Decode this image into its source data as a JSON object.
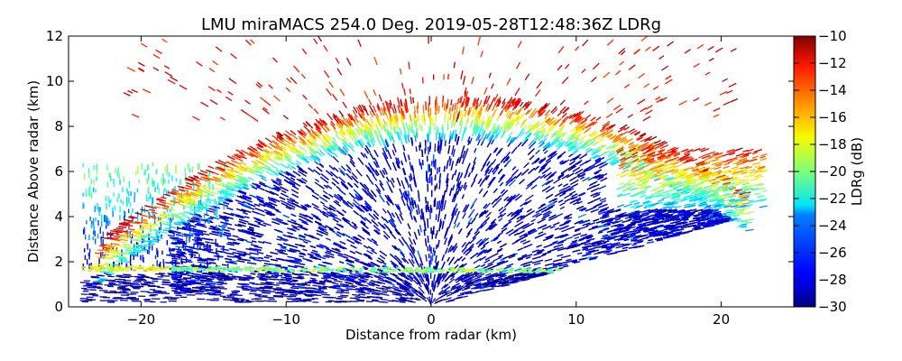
{
  "chart_data": {
    "type": "heatmap",
    "title": "LMU miraMACS 254.0 Deg. 2019-05-28T12:48:36Z  LDRg",
    "xlabel": "Distance from radar (km)",
    "ylabel": "Distance Above radar  (km)",
    "xlim": [
      -25,
      25
    ],
    "ylim": [
      0,
      12
    ],
    "xticks": [
      -20,
      -10,
      0,
      10,
      20
    ],
    "xtick_labels": [
      "−20",
      "−10",
      "0",
      "10",
      "20"
    ],
    "yticks": [
      0,
      2,
      4,
      6,
      8,
      10,
      12
    ],
    "ytick_labels": [
      "0",
      "2",
      "4",
      "6",
      "8",
      "10",
      "12"
    ],
    "grid": false,
    "colorbar": {
      "label": "LDRg (dB)",
      "colormap": "jet",
      "range": [
        -30,
        -10
      ],
      "ticks": [
        -10,
        -12,
        -14,
        -16,
        -18,
        -20,
        -22,
        -24,
        -26,
        -28,
        -30
      ],
      "tick_labels": [
        "−10",
        "−12",
        "−14",
        "−16",
        "−18",
        "−20",
        "−22",
        "−24",
        "−26",
        "−28",
        "−30"
      ]
    },
    "features": {
      "scan_edge_left": {
        "x": [
          -24,
          -24
        ],
        "y": [
          0.3,
          6.5
        ]
      },
      "scan_edge_right_bottom": {
        "x": [
          0,
          23.6
        ],
        "y": [
          0,
          4.3
        ]
      },
      "melting_layer": {
        "x": [
          -24,
          9
        ],
        "y": [
          1.7,
          1.6
        ],
        "ldr": -20
      },
      "bulk_cloud": {
        "x": [
          -16,
          20
        ],
        "top_km": 7.5,
        "ldr": -28
      },
      "cloud_top_fringe": {
        "height_km": [
          6,
          9
        ],
        "ldr": [
          -22,
          -12
        ]
      },
      "sparse_returns": {
        "height_km": [
          9,
          12
        ],
        "ldr": -11
      }
    }
  }
}
